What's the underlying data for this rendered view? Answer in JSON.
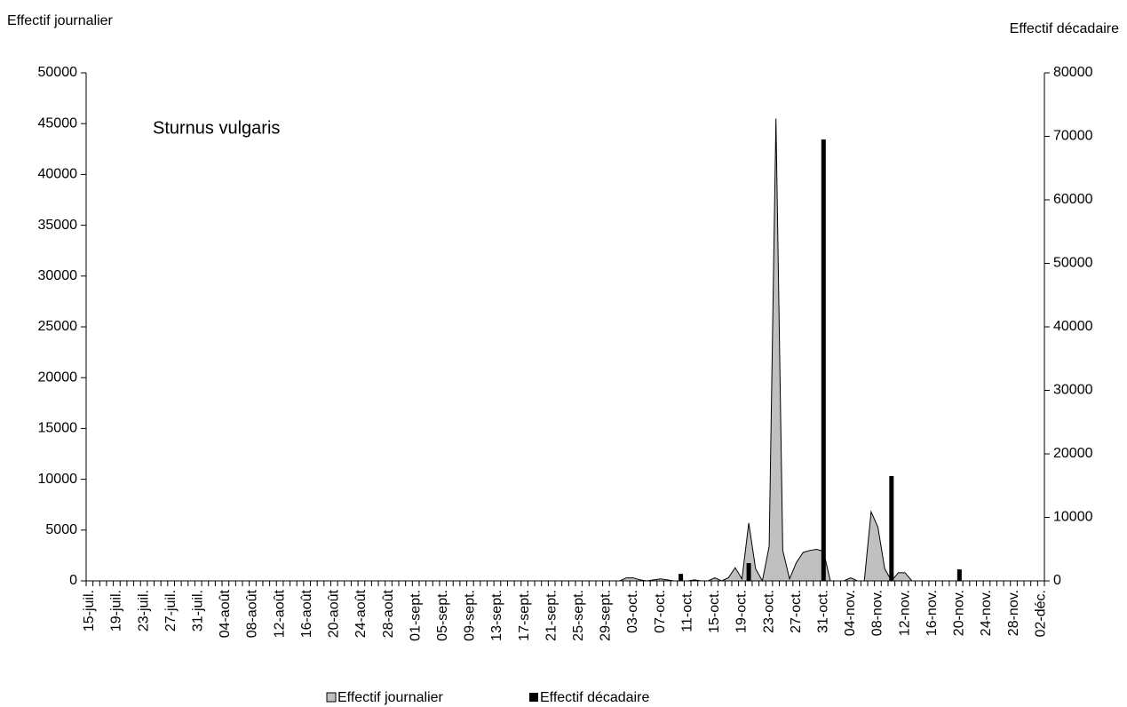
{
  "chart_data": {
    "type": "area_bar",
    "annotation": "Sturnus vulgaris",
    "y_label": "Effectif journalier",
    "y2_label": "Effectif décadaire",
    "legend": "bottom",
    "categories": [
      "15-juil.",
      null,
      null,
      null,
      "19-juil.",
      null,
      null,
      null,
      "23-juil.",
      null,
      null,
      null,
      "27-juil.",
      null,
      null,
      null,
      "31-juil.",
      null,
      null,
      null,
      "04-août",
      null,
      null,
      null,
      "08-août",
      null,
      null,
      null,
      "12-août",
      null,
      null,
      null,
      "16-août",
      null,
      null,
      null,
      "20-août",
      null,
      null,
      null,
      "24-août",
      null,
      null,
      null,
      "28-août",
      null,
      null,
      null,
      "01-sept.",
      null,
      null,
      null,
      "05-sept.",
      null,
      null,
      null,
      "09-sept.",
      null,
      null,
      null,
      "13-sept.",
      null,
      null,
      null,
      "17-sept.",
      null,
      null,
      null,
      "21-sept.",
      null,
      null,
      null,
      "25-sept.",
      null,
      null,
      null,
      "29-sept.",
      null,
      null,
      null,
      "03-oct.",
      null,
      null,
      null,
      "07-oct.",
      null,
      null,
      null,
      "11-oct.",
      null,
      null,
      null,
      "15-oct.",
      null,
      null,
      null,
      "19-oct.",
      null,
      null,
      null,
      "23-oct.",
      null,
      null,
      null,
      "27-oct.",
      null,
      null,
      null,
      "31-oct.",
      null,
      null,
      null,
      "04-nov.",
      null,
      null,
      null,
      "08-nov.",
      null,
      null,
      null,
      "12-nov.",
      null,
      null,
      null,
      "16-nov.",
      null,
      null,
      null,
      "20-nov.",
      null,
      null,
      null,
      "24-nov.",
      null,
      null,
      null,
      "28-nov.",
      null,
      null,
      null,
      "02-déc."
    ],
    "series": [
      {
        "name": "Effectif journalier",
        "kind": "area",
        "color": "#c0c0c0",
        "values": [
          0,
          0,
          0,
          0,
          0,
          0,
          0,
          0,
          0,
          0,
          0,
          0,
          0,
          0,
          0,
          0,
          0,
          0,
          0,
          0,
          0,
          0,
          0,
          0,
          0,
          0,
          0,
          0,
          0,
          0,
          0,
          0,
          0,
          0,
          0,
          0,
          0,
          0,
          0,
          0,
          0,
          0,
          0,
          0,
          0,
          0,
          0,
          0,
          0,
          0,
          0,
          0,
          0,
          0,
          0,
          0,
          0,
          0,
          0,
          0,
          0,
          0,
          0,
          0,
          0,
          0,
          0,
          0,
          0,
          0,
          0,
          0,
          0,
          0,
          0,
          0,
          0,
          0,
          0,
          300,
          300,
          100,
          0,
          100,
          200,
          100,
          0,
          0,
          0,
          100,
          0,
          0,
          300,
          0,
          300,
          1300,
          200,
          5700,
          1200,
          0,
          3400,
          45500,
          3000,
          200,
          1800,
          2800,
          3000,
          3100,
          2900,
          0,
          0,
          0,
          300,
          0,
          0,
          6800,
          5300,
          1200,
          0,
          800,
          800,
          0,
          0,
          0,
          0,
          0,
          0,
          0,
          0,
          0,
          0,
          0,
          0,
          0,
          0,
          0,
          0,
          0,
          0,
          0,
          0
        ]
      },
      {
        "name": "Effectif décadaire",
        "kind": "bar",
        "axis": "y2",
        "color": "#000000",
        "values": [
          null,
          null,
          null,
          null,
          null,
          null,
          null,
          null,
          null,
          null,
          null,
          null,
          null,
          null,
          null,
          null,
          null,
          null,
          null,
          null,
          null,
          null,
          null,
          null,
          null,
          null,
          null,
          null,
          null,
          null,
          null,
          null,
          null,
          null,
          null,
          null,
          null,
          null,
          null,
          null,
          null,
          null,
          null,
          null,
          null,
          null,
          null,
          null,
          null,
          null,
          null,
          null,
          null,
          null,
          null,
          null,
          null,
          null,
          null,
          null,
          null,
          null,
          null,
          null,
          null,
          null,
          null,
          null,
          null,
          null,
          null,
          null,
          null,
          null,
          null,
          null,
          null,
          null,
          null,
          null,
          null,
          null,
          null,
          null,
          null,
          null,
          null,
          1100,
          null,
          null,
          null,
          null,
          null,
          null,
          null,
          null,
          null,
          2800,
          null,
          null,
          null,
          null,
          null,
          null,
          null,
          null,
          null,
          null,
          69500,
          null,
          null,
          null,
          null,
          null,
          null,
          null,
          null,
          null,
          16500,
          null,
          null,
          null,
          null,
          null,
          null,
          null,
          null,
          null,
          1800,
          null,
          null,
          null,
          null,
          null,
          null,
          null,
          null,
          null,
          null,
          null,
          null
        ]
      }
    ],
    "ylim": [
      0,
      50000
    ],
    "yticks": [
      0,
      5000,
      10000,
      15000,
      20000,
      25000,
      30000,
      35000,
      40000,
      45000,
      50000
    ],
    "y2lim": [
      0,
      80000
    ],
    "y2ticks": [
      0,
      10000,
      20000,
      30000,
      40000,
      50000,
      60000,
      70000,
      80000
    ]
  }
}
